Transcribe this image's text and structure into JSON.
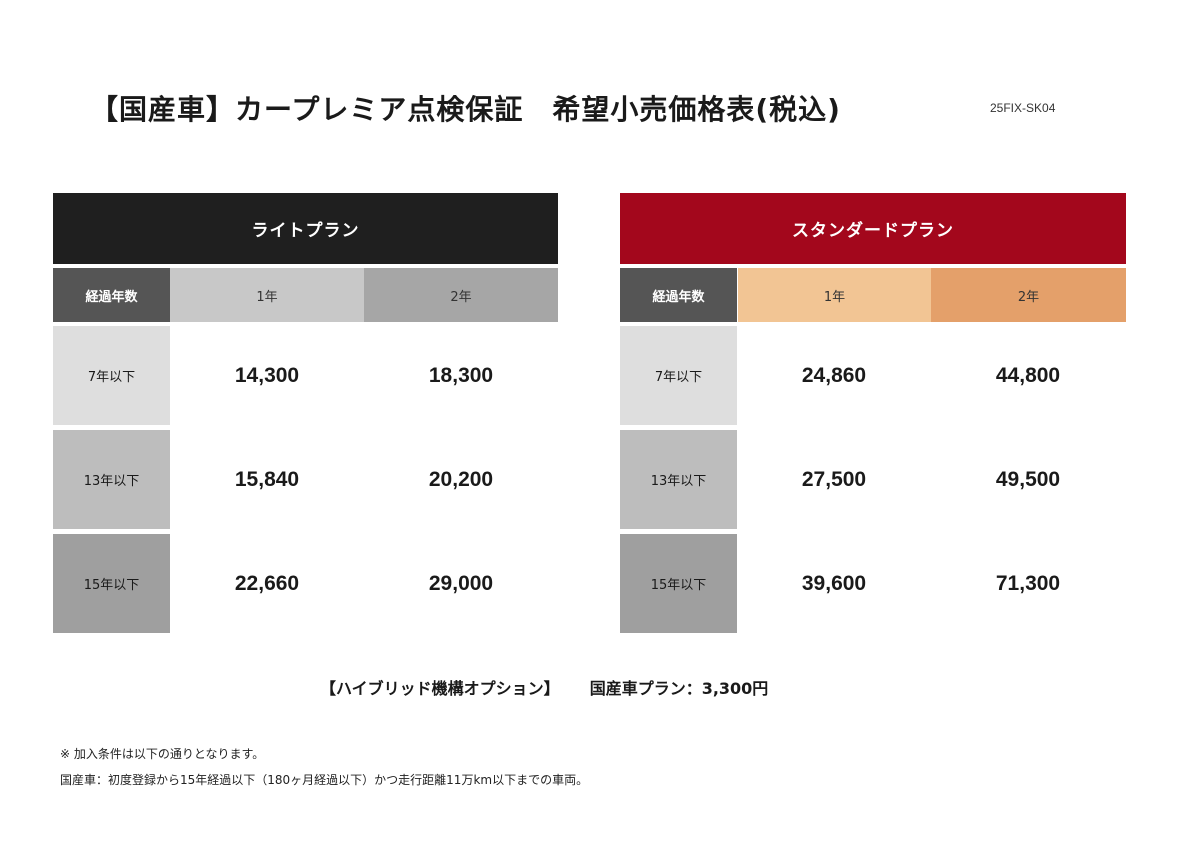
{
  "title": "【国産車】カープレミア点検保証　希望小売価格表(税込)",
  "doc_code": "25FIX-SK04",
  "plans": {
    "light": {
      "name": "ライトプラン",
      "label_header": "経過年数",
      "year1": "1年",
      "year2": "2年",
      "rows": [
        {
          "label": "7年以下",
          "y1": "14,300",
          "y2": "18,300"
        },
        {
          "label": "13年以下",
          "y1": "15,840",
          "y2": "20,200"
        },
        {
          "label": "15年以下",
          "y1": "22,660",
          "y2": "29,000"
        }
      ]
    },
    "standard": {
      "name": "スタンダードプラン",
      "label_header": "経過年数",
      "year1": "1年",
      "year2": "2年",
      "rows": [
        {
          "label": "7年以下",
          "y1": "24,860",
          "y2": "44,800"
        },
        {
          "label": "13年以下",
          "y1": "27,500",
          "y2": "49,500"
        },
        {
          "label": "15年以下",
          "y1": "39,600",
          "y2": "71,300"
        }
      ]
    }
  },
  "hybrid_option": {
    "label": "【ハイブリッド機構オプション】",
    "value": "国産車プラン：3,300円"
  },
  "notes": [
    "※ 加入条件は以下の通りとなります。",
    "国産車：初度登録から15年経過以下（180ヶ月経過以下）かつ走行距離11万km以下までの車両。"
  ],
  "colors": {
    "light_header": "#1f1f1f",
    "standard_header": "#a3071c",
    "standard_year1": "#f2c594",
    "standard_year2": "#e4a06a"
  }
}
